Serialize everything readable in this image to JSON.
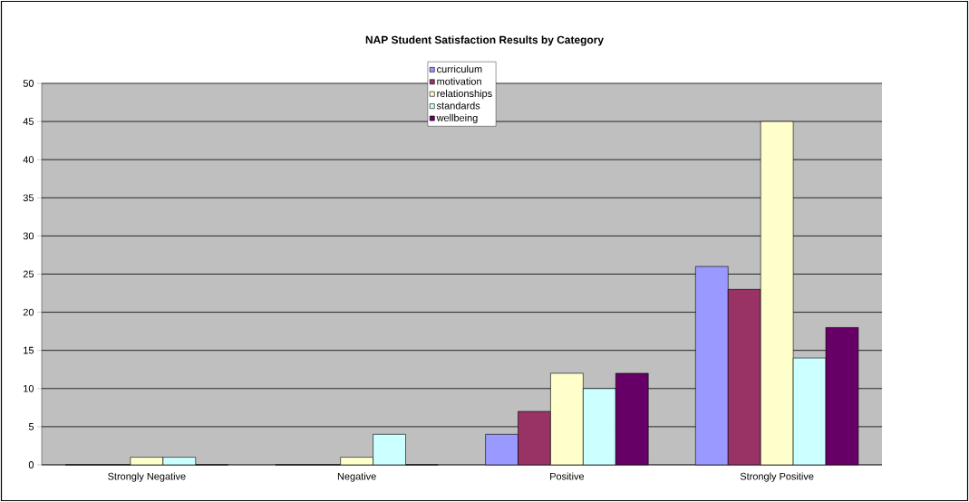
{
  "chart_data": {
    "type": "bar",
    "title": "NAP Student Satisfaction Results by Category",
    "categories": [
      "Strongly Negative",
      "Negative",
      "Positive",
      "Strongly Positive"
    ],
    "series": [
      {
        "name": "curriculum",
        "color": "#9999ff",
        "values": [
          0,
          0,
          4,
          26
        ]
      },
      {
        "name": "motivation",
        "color": "#993366",
        "values": [
          0,
          0,
          7,
          23
        ]
      },
      {
        "name": "relationships",
        "color": "#ffffcc",
        "values": [
          1,
          1,
          12,
          45
        ]
      },
      {
        "name": "standards",
        "color": "#ccffff",
        "values": [
          1,
          4,
          10,
          14
        ]
      },
      {
        "name": "wellbeing",
        "color": "#660066",
        "values": [
          0,
          0,
          12,
          18
        ]
      }
    ],
    "ylim": [
      0,
      50
    ],
    "yticks": [
      0,
      5,
      10,
      15,
      20,
      25,
      30,
      35,
      40,
      45,
      50
    ],
    "grid": "y",
    "legend": "top"
  }
}
